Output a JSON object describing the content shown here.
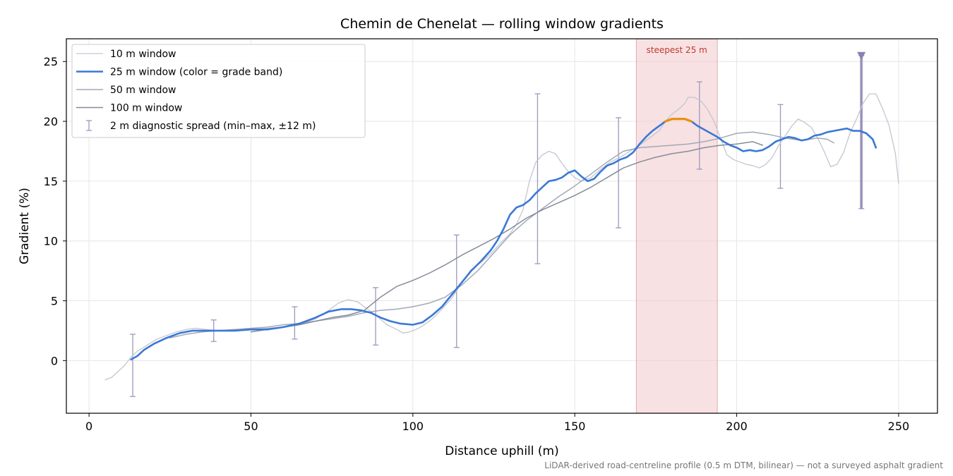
{
  "chart_data": {
    "type": "line",
    "title": "Chemin de Chenelat — rolling window gradients",
    "xlabel": "Distance uphill (m)",
    "ylabel": "Gradient (%)",
    "xlim": [
      -7,
      262
    ],
    "ylim": [
      -4.4,
      26.9
    ],
    "xticks": [
      0,
      50,
      100,
      150,
      200,
      250
    ],
    "yticks": [
      0,
      5,
      10,
      15,
      20,
      25
    ],
    "grid": true,
    "legend_position": "top-left",
    "footnote": "LiDAR-derived road-centreline profile (0.5 m DTM, bilinear) — not a surveyed asphalt gradient",
    "highlight": {
      "label": "steepest 25 m",
      "x_start": 169,
      "x_end": 194,
      "color": "#f2c8cc",
      "label_color": "#c0392b"
    },
    "series": [
      {
        "name": "10 m window",
        "color": "#c2c6d0",
        "width": 1.3,
        "points": [
          [
            5,
            -1.6
          ],
          [
            7,
            -1.4
          ],
          [
            9,
            -0.9
          ],
          [
            11,
            -0.4
          ],
          [
            13,
            0.3
          ],
          [
            15,
            0.8
          ],
          [
            18,
            1.3
          ],
          [
            21,
            1.8
          ],
          [
            24,
            2.1
          ],
          [
            27,
            2.4
          ],
          [
            30,
            2.6
          ],
          [
            33,
            2.7
          ],
          [
            36,
            2.6
          ],
          [
            40,
            2.5
          ],
          [
            45,
            2.6
          ],
          [
            50,
            2.6
          ],
          [
            55,
            2.7
          ],
          [
            60,
            2.8
          ],
          [
            65,
            3.0
          ],
          [
            70,
            3.5
          ],
          [
            74,
            4.2
          ],
          [
            77,
            4.8
          ],
          [
            80,
            5.1
          ],
          [
            83,
            4.9
          ],
          [
            86,
            4.3
          ],
          [
            89,
            3.7
          ],
          [
            92,
            3.0
          ],
          [
            95,
            2.6
          ],
          [
            97,
            2.3
          ],
          [
            99,
            2.4
          ],
          [
            101,
            2.6
          ],
          [
            103,
            2.9
          ],
          [
            106,
            3.5
          ],
          [
            109,
            4.3
          ],
          [
            112,
            5.2
          ],
          [
            115,
            6.5
          ],
          [
            118,
            7.6
          ],
          [
            121,
            8.2
          ],
          [
            124,
            8.9
          ],
          [
            127,
            9.8
          ],
          [
            130,
            10.6
          ],
          [
            132,
            11.4
          ],
          [
            134,
            12.6
          ],
          [
            136,
            15.0
          ],
          [
            138,
            16.6
          ],
          [
            140,
            17.2
          ],
          [
            142,
            17.5
          ],
          [
            144,
            17.3
          ],
          [
            146,
            16.5
          ],
          [
            148,
            15.8
          ],
          [
            150,
            15.3
          ],
          [
            152,
            15.0
          ],
          [
            155,
            15.3
          ],
          [
            158,
            16.0
          ],
          [
            161,
            16.6
          ],
          [
            164,
            17.0
          ],
          [
            167,
            17.5
          ],
          [
            170,
            18.0
          ],
          [
            173,
            18.6
          ],
          [
            176,
            19.2
          ],
          [
            178,
            20.0
          ],
          [
            180,
            20.6
          ],
          [
            182,
            21.0
          ],
          [
            184,
            21.5
          ],
          [
            185,
            22.0
          ],
          [
            187,
            22.0
          ],
          [
            189,
            21.7
          ],
          [
            191,
            21.0
          ],
          [
            193,
            20.0
          ],
          [
            195,
            18.6
          ],
          [
            197,
            17.2
          ],
          [
            199,
            16.8
          ],
          [
            201,
            16.6
          ],
          [
            203,
            16.4
          ],
          [
            205,
            16.3
          ],
          [
            207,
            16.1
          ],
          [
            209,
            16.4
          ],
          [
            211,
            17.0
          ],
          [
            213,
            18.0
          ],
          [
            215,
            18.8
          ],
          [
            217,
            19.6
          ],
          [
            219,
            20.2
          ],
          [
            221,
            19.9
          ],
          [
            223,
            19.5
          ],
          [
            225,
            18.6
          ],
          [
            227,
            17.5
          ],
          [
            229,
            16.2
          ],
          [
            231,
            16.4
          ],
          [
            233,
            17.4
          ],
          [
            235,
            19.0
          ],
          [
            237,
            20.2
          ],
          [
            239,
            21.5
          ],
          [
            241,
            22.3
          ],
          [
            243,
            22.3
          ],
          [
            245,
            21.1
          ],
          [
            247,
            19.7
          ],
          [
            249,
            17.3
          ],
          [
            250,
            14.8
          ]
        ]
      },
      {
        "name": "25 m window (color = grade band)",
        "color": "#3a78d6",
        "highlight_color": "#e8900c",
        "highlight_x": [
          177,
          186
        ],
        "width": 2.6,
        "points": [
          [
            13,
            0.1
          ],
          [
            15,
            0.4
          ],
          [
            17,
            0.9
          ],
          [
            20,
            1.4
          ],
          [
            24,
            1.9
          ],
          [
            28,
            2.3
          ],
          [
            32,
            2.5
          ],
          [
            36,
            2.5
          ],
          [
            40,
            2.5
          ],
          [
            45,
            2.5
          ],
          [
            50,
            2.6
          ],
          [
            55,
            2.6
          ],
          [
            60,
            2.8
          ],
          [
            65,
            3.1
          ],
          [
            70,
            3.6
          ],
          [
            74,
            4.1
          ],
          [
            78,
            4.3
          ],
          [
            81,
            4.3
          ],
          [
            84,
            4.2
          ],
          [
            87,
            4.0
          ],
          [
            90,
            3.6
          ],
          [
            93,
            3.3
          ],
          [
            96,
            3.1
          ],
          [
            100,
            3.0
          ],
          [
            103,
            3.2
          ],
          [
            106,
            3.8
          ],
          [
            109,
            4.5
          ],
          [
            112,
            5.5
          ],
          [
            115,
            6.5
          ],
          [
            118,
            7.5
          ],
          [
            121,
            8.3
          ],
          [
            124,
            9.2
          ],
          [
            126,
            10.0
          ],
          [
            128,
            11.0
          ],
          [
            130,
            12.2
          ],
          [
            132,
            12.8
          ],
          [
            134,
            13.0
          ],
          [
            136,
            13.4
          ],
          [
            138,
            14.0
          ],
          [
            140,
            14.5
          ],
          [
            142,
            15.0
          ],
          [
            144,
            15.1
          ],
          [
            146,
            15.3
          ],
          [
            148,
            15.7
          ],
          [
            150,
            15.9
          ],
          [
            152,
            15.4
          ],
          [
            154,
            15.0
          ],
          [
            156,
            15.2
          ],
          [
            158,
            15.8
          ],
          [
            160,
            16.3
          ],
          [
            162,
            16.5
          ],
          [
            164,
            16.8
          ],
          [
            166,
            17.0
          ],
          [
            168,
            17.4
          ],
          [
            170,
            18.1
          ],
          [
            172,
            18.7
          ],
          [
            174,
            19.2
          ],
          [
            176,
            19.6
          ],
          [
            178,
            20.0
          ],
          [
            180,
            20.2
          ],
          [
            182,
            20.2
          ],
          [
            184,
            20.2
          ],
          [
            186,
            20.0
          ],
          [
            188,
            19.6
          ],
          [
            190,
            19.3
          ],
          [
            192,
            19.0
          ],
          [
            194,
            18.7
          ],
          [
            196,
            18.3
          ],
          [
            198,
            18.0
          ],
          [
            200,
            17.8
          ],
          [
            202,
            17.5
          ],
          [
            204,
            17.6
          ],
          [
            206,
            17.5
          ],
          [
            208,
            17.6
          ],
          [
            210,
            17.9
          ],
          [
            212,
            18.3
          ],
          [
            214,
            18.5
          ],
          [
            216,
            18.7
          ],
          [
            218,
            18.6
          ],
          [
            220,
            18.4
          ],
          [
            222,
            18.5
          ],
          [
            224,
            18.8
          ],
          [
            226,
            18.9
          ],
          [
            228,
            19.1
          ],
          [
            230,
            19.2
          ],
          [
            232,
            19.3
          ],
          [
            234,
            19.4
          ],
          [
            236,
            19.2
          ],
          [
            238,
            19.2
          ],
          [
            240,
            19.0
          ],
          [
            242,
            18.5
          ],
          [
            243,
            17.8
          ]
        ]
      },
      {
        "name": "50 m window",
        "color": "#a2a9b6",
        "width": 1.5,
        "points": [
          [
            25,
            1.9
          ],
          [
            30,
            2.2
          ],
          [
            35,
            2.4
          ],
          [
            40,
            2.5
          ],
          [
            45,
            2.6
          ],
          [
            50,
            2.7
          ],
          [
            55,
            2.8
          ],
          [
            60,
            3.0
          ],
          [
            65,
            3.1
          ],
          [
            70,
            3.3
          ],
          [
            75,
            3.5
          ],
          [
            80,
            3.7
          ],
          [
            85,
            4.0
          ],
          [
            90,
            4.2
          ],
          [
            95,
            4.3
          ],
          [
            100,
            4.5
          ],
          [
            105,
            4.8
          ],
          [
            110,
            5.3
          ],
          [
            115,
            6.3
          ],
          [
            120,
            7.5
          ],
          [
            125,
            9.0
          ],
          [
            130,
            10.5
          ],
          [
            135,
            11.7
          ],
          [
            140,
            12.7
          ],
          [
            145,
            13.7
          ],
          [
            150,
            14.6
          ],
          [
            155,
            15.6
          ],
          [
            160,
            16.6
          ],
          [
            165,
            17.5
          ],
          [
            170,
            17.8
          ],
          [
            175,
            17.9
          ],
          [
            180,
            18.0
          ],
          [
            185,
            18.1
          ],
          [
            190,
            18.3
          ],
          [
            195,
            18.6
          ],
          [
            200,
            19.0
          ],
          [
            205,
            19.1
          ],
          [
            210,
            18.9
          ],
          [
            215,
            18.6
          ],
          [
            220,
            18.4
          ],
          [
            225,
            18.6
          ],
          [
            228,
            18.5
          ],
          [
            230,
            18.2
          ]
        ]
      },
      {
        "name": "100 m window",
        "color": "#858c9a",
        "width": 1.5,
        "points": [
          [
            50,
            2.4
          ],
          [
            55,
            2.6
          ],
          [
            60,
            2.8
          ],
          [
            65,
            3.0
          ],
          [
            70,
            3.3
          ],
          [
            75,
            3.6
          ],
          [
            80,
            3.8
          ],
          [
            85,
            4.2
          ],
          [
            90,
            5.3
          ],
          [
            95,
            6.2
          ],
          [
            100,
            6.7
          ],
          [
            105,
            7.3
          ],
          [
            110,
            8.0
          ],
          [
            115,
            8.8
          ],
          [
            120,
            9.5
          ],
          [
            125,
            10.2
          ],
          [
            130,
            11.0
          ],
          [
            135,
            11.9
          ],
          [
            140,
            12.6
          ],
          [
            145,
            13.2
          ],
          [
            150,
            13.8
          ],
          [
            155,
            14.5
          ],
          [
            160,
            15.3
          ],
          [
            165,
            16.1
          ],
          [
            170,
            16.6
          ],
          [
            175,
            17.0
          ],
          [
            180,
            17.3
          ],
          [
            185,
            17.5
          ],
          [
            190,
            17.8
          ],
          [
            195,
            18.0
          ],
          [
            200,
            18.1
          ],
          [
            205,
            18.3
          ],
          [
            208,
            18.0
          ]
        ]
      }
    ],
    "errorbars": {
      "name": "2 m diagnostic spread (min–max, ±12 m)",
      "color": "#9c98bd",
      "points": [
        {
          "x": 13.5,
          "ymin": -3.0,
          "ymax": 2.2
        },
        {
          "x": 38.5,
          "ymin": 1.6,
          "ymax": 3.4
        },
        {
          "x": 63.5,
          "ymin": 1.8,
          "ymax": 4.5
        },
        {
          "x": 88.5,
          "ymin": 1.3,
          "ymax": 6.1
        },
        {
          "x": 113.5,
          "ymin": 1.1,
          "ymax": 10.5
        },
        {
          "x": 138.5,
          "ymin": 8.1,
          "ymax": 22.3
        },
        {
          "x": 163.5,
          "ymin": 11.1,
          "ymax": 20.3
        },
        {
          "x": 188.5,
          "ymin": 16.0,
          "ymax": 23.3
        },
        {
          "x": 213.5,
          "ymin": 14.4,
          "ymax": 21.4
        },
        {
          "x": 238.5,
          "ymin": 12.7,
          "ymax": 25.5
        }
      ],
      "marker": {
        "x": 238.5,
        "y": 25.5,
        "shape": "triangle-down",
        "color": "#8a7fb0"
      }
    }
  }
}
